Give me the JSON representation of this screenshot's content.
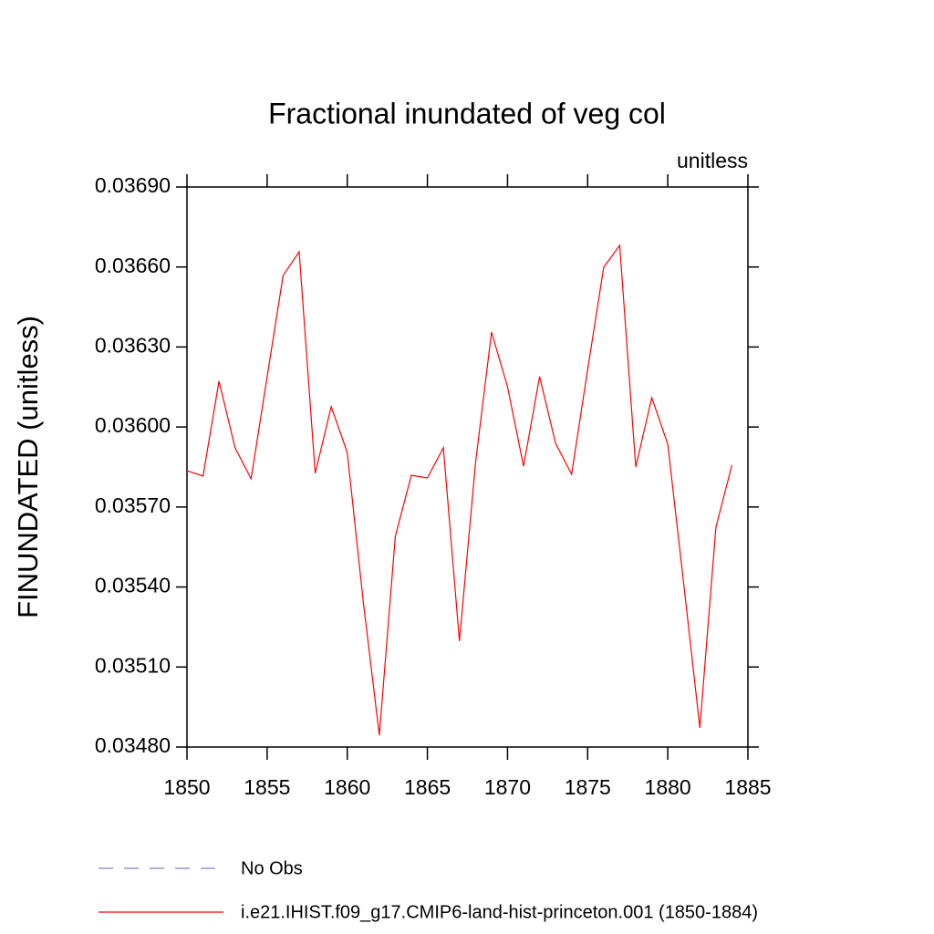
{
  "chart_data": {
    "type": "line",
    "title": "Fractional inundated of veg col",
    "subtitle": "unitless",
    "y_label": "FINUNDATED  (unitless)",
    "x": [
      1850,
      1851,
      1852,
      1853,
      1854,
      1855,
      1856,
      1857,
      1858,
      1859,
      1860,
      1861,
      1862,
      1863,
      1864,
      1865,
      1866,
      1867,
      1868,
      1869,
      1870,
      1871,
      1872,
      1873,
      1874,
      1875,
      1876,
      1877,
      1878,
      1879,
      1880,
      1881,
      1882,
      1883,
      1884
    ],
    "series": [
      {
        "name": "No Obs",
        "color": "#8080c0",
        "dashed": true,
        "values": [
          null,
          null,
          null,
          null,
          null,
          null,
          null,
          null,
          null,
          null,
          null,
          null,
          null,
          null,
          null,
          null,
          null,
          null,
          null,
          null,
          null,
          null,
          null,
          null,
          null,
          null,
          null,
          null,
          null,
          null,
          null,
          null,
          null,
          null,
          null
        ]
      },
      {
        "name": "i.e21.IHIST.f09_g17.CMIP6-land-hist-princeton.001 (1850-1884)",
        "color": "#ff0000",
        "dashed": false,
        "values": [
          0.035836,
          0.035816,
          0.036172,
          0.035922,
          0.035806,
          0.036189,
          0.036568,
          0.036657,
          0.035826,
          0.036076,
          0.035905,
          0.035344,
          0.034844,
          0.03559,
          0.035819,
          0.035809,
          0.035922,
          0.035197,
          0.035864,
          0.036356,
          0.036151,
          0.035853,
          0.036189,
          0.035939,
          0.035823,
          0.036216,
          0.036599,
          0.036681,
          0.03585,
          0.03611,
          0.035936,
          0.035409,
          0.034872,
          0.035624,
          0.035857
        ]
      }
    ],
    "xlim": [
      1850,
      1885
    ],
    "xticks": [
      1850,
      1855,
      1860,
      1865,
      1870,
      1875,
      1880,
      1885
    ],
    "ylim": [
      0.0348,
      0.0369
    ],
    "yticks": [
      {
        "value": 0.0348,
        "label": "0.03480"
      },
      {
        "value": 0.0351,
        "label": "0.03510"
      },
      {
        "value": 0.0354,
        "label": "0.03540"
      },
      {
        "value": 0.0357,
        "label": "0.03570"
      },
      {
        "value": 0.036,
        "label": "0.03600"
      },
      {
        "value": 0.0363,
        "label": "0.03630"
      },
      {
        "value": 0.0366,
        "label": "0.03660"
      },
      {
        "value": 0.0369,
        "label": "0.03690"
      }
    ],
    "grid": false
  }
}
